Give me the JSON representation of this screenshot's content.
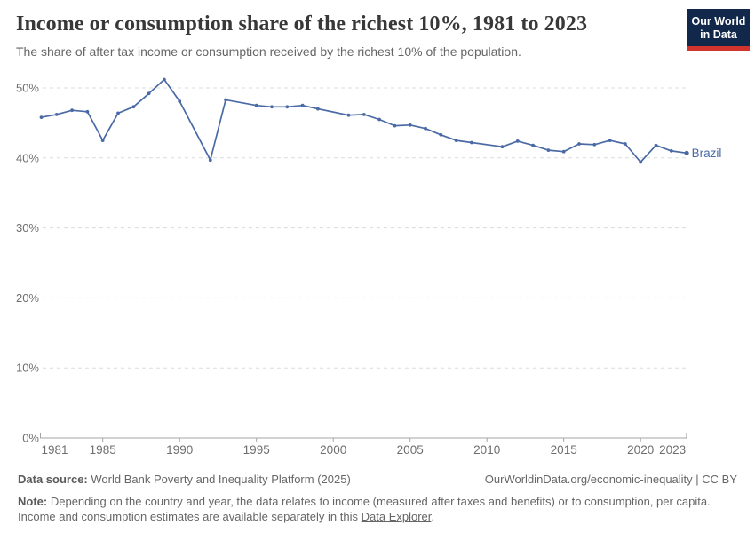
{
  "header": {
    "title": "Income or consumption share of the richest 10%, 1981 to 2023",
    "subtitle": "The share of after tax income or consumption received by the richest 10% of the population.",
    "logo_line1": "Our World",
    "logo_line2": "in Data"
  },
  "colors": {
    "series": "#4a6aa5",
    "logo_bg": "#12284b",
    "logo_stripe": "#d0342c",
    "grid": "#dcdcdc",
    "axis": "#a5a5a5",
    "tick_text": "#6e6e6e"
  },
  "chart_data": {
    "type": "line",
    "title": "Income or consumption share of the richest 10%, 1981 to 2023",
    "xlabel": "",
    "ylabel": "",
    "xlim": [
      1981,
      2023
    ],
    "ylim": [
      0,
      51.8
    ],
    "grid": "horizontal-dashed",
    "legend": "line-end-label",
    "x_ticks": [
      1981,
      1985,
      1990,
      1995,
      2000,
      2005,
      2010,
      2015,
      2020,
      2023
    ],
    "y_ticks": [
      0,
      10,
      20,
      30,
      40,
      50
    ],
    "y_tick_suffix": "%",
    "series": [
      {
        "name": "Brazil",
        "points": [
          [
            1981,
            45.8
          ],
          [
            1982,
            46.2
          ],
          [
            1983,
            46.8
          ],
          [
            1984,
            46.6
          ],
          [
            1985,
            42.5
          ],
          [
            1986,
            46.4
          ],
          [
            1987,
            47.3
          ],
          [
            1988,
            49.2
          ],
          [
            1989,
            51.2
          ],
          [
            1990,
            48.1
          ],
          [
            1992,
            39.7
          ],
          [
            1993,
            48.3
          ],
          [
            1995,
            47.5
          ],
          [
            1996,
            47.3
          ],
          [
            1997,
            47.3
          ],
          [
            1998,
            47.5
          ],
          [
            1999,
            47.0
          ],
          [
            2001,
            46.1
          ],
          [
            2002,
            46.2
          ],
          [
            2003,
            45.5
          ],
          [
            2004,
            44.6
          ],
          [
            2005,
            44.7
          ],
          [
            2006,
            44.2
          ],
          [
            2007,
            43.3
          ],
          [
            2008,
            42.5
          ],
          [
            2009,
            42.2
          ],
          [
            2011,
            41.6
          ],
          [
            2012,
            42.4
          ],
          [
            2013,
            41.8
          ],
          [
            2014,
            41.1
          ],
          [
            2015,
            40.9
          ],
          [
            2016,
            42.0
          ],
          [
            2017,
            41.9
          ],
          [
            2018,
            42.5
          ],
          [
            2019,
            42.0
          ],
          [
            2020,
            39.4
          ],
          [
            2021,
            41.8
          ],
          [
            2022,
            41.0
          ],
          [
            2023,
            40.7
          ]
        ]
      }
    ]
  },
  "footer": {
    "datasource_label": "Data source:",
    "datasource_value": "World Bank Poverty and Inequality Platform (2025)",
    "owid_link": "OurWorldinData.org/economic-inequality | CC BY",
    "note_label": "Note:",
    "note_line1": "Depending on the country and year, the data relates to income (measured after taxes and benefits) or to consumption, per capita.",
    "note_line2_prefix": "Income and consumption estimates are available separately in this",
    "note_link": "Data Explorer",
    "note_line2_suffix": "."
  }
}
